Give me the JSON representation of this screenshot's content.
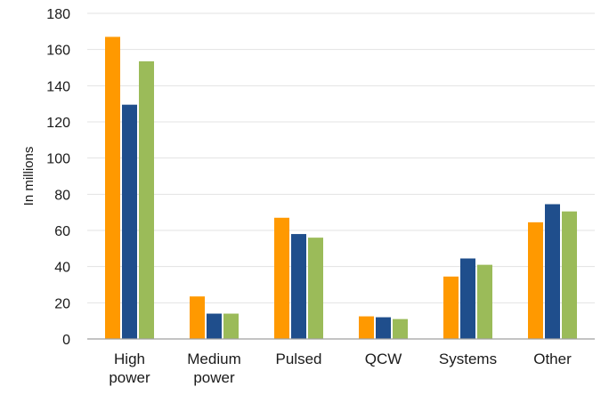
{
  "chart_data": {
    "type": "bar",
    "title": "",
    "xlabel": "",
    "ylabel": "In millions",
    "ylim": [
      0,
      180
    ],
    "yticks": [
      0,
      20,
      40,
      60,
      80,
      100,
      120,
      140,
      160,
      180
    ],
    "grid": true,
    "legend": "none",
    "categories": [
      [
        "High",
        "power"
      ],
      [
        "Medium",
        "power"
      ],
      [
        "Pulsed"
      ],
      [
        "QCW"
      ],
      [
        "Systems"
      ],
      [
        "Other"
      ]
    ],
    "series": [
      {
        "color": "#ff9900",
        "values": [
          167,
          23.5,
          67,
          12.5,
          34.5,
          64.5
        ]
      },
      {
        "color": "#1f4e8c",
        "values": [
          129.5,
          14,
          58,
          12,
          44.5,
          74.5
        ]
      },
      {
        "color": "#9bbb59",
        "values": [
          153.5,
          14,
          56,
          11,
          41,
          70.5
        ]
      }
    ],
    "colors": {
      "grid": "#e3e3e3",
      "axis": "#a0a0a0",
      "text": "#1a1a1a"
    }
  }
}
